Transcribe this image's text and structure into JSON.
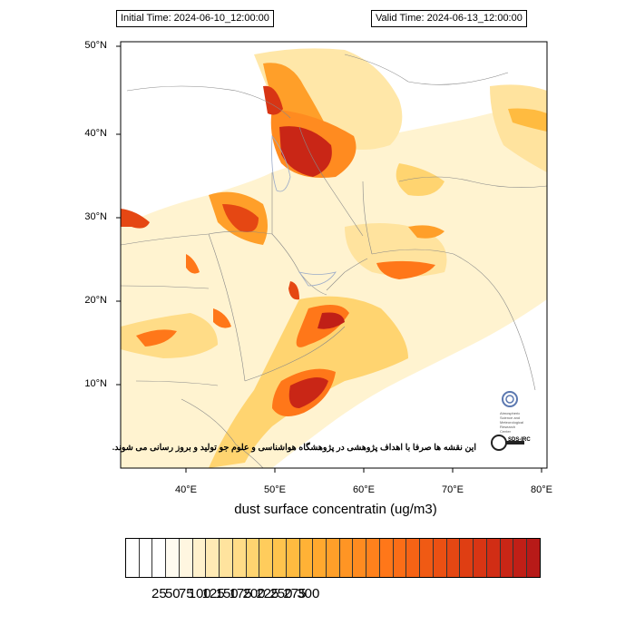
{
  "header": {
    "initial_time": "Initial Time: 2024-06-10_12:00:00",
    "valid_time": "Valid Time: 2024-06-13_12:00:00"
  },
  "map": {
    "lat_labels": [
      "50°N",
      "40°N",
      "30°N",
      "20°N",
      "10°N"
    ],
    "lon_labels": [
      "40°E",
      "50°E",
      "60°E",
      "70°E",
      "80°E"
    ],
    "caption": "dust surface concentratin (ug/m3)",
    "disclaimer": "این نقشه ها صرفا با اهداف پژوهشی در پژوهشگاه هواشناسی و علوم جو تولید و بروز رسانی می شوند.",
    "logo_text": "Atmospheric Science and Meteorological Research Center",
    "sds_label": "SDS-IRC"
  },
  "colorbar": {
    "ticks": [
      "25",
      "50",
      "75",
      "100",
      "125",
      "150",
      "175",
      "200",
      "225",
      "250",
      "275",
      "300"
    ],
    "colors": [
      "#ffffff",
      "#ffffff",
      "#ffffff",
      "#fffbf0",
      "#fff6e0",
      "#fff1cc",
      "#ffeab5",
      "#ffe39e",
      "#ffdc87",
      "#ffd470",
      "#ffcc5c",
      "#ffc44d",
      "#ffbb40",
      "#ffb236",
      "#ffa82e",
      "#ff9f29",
      "#ff9524",
      "#ff8b20",
      "#ff811c",
      "#ff7719",
      "#fb6d17",
      "#f66315",
      "#f05a14",
      "#eb5013",
      "#e54713",
      "#df3e13",
      "#d83514",
      "#d12d15",
      "#c92616",
      "#c01f17",
      "#b71a18"
    ]
  }
}
